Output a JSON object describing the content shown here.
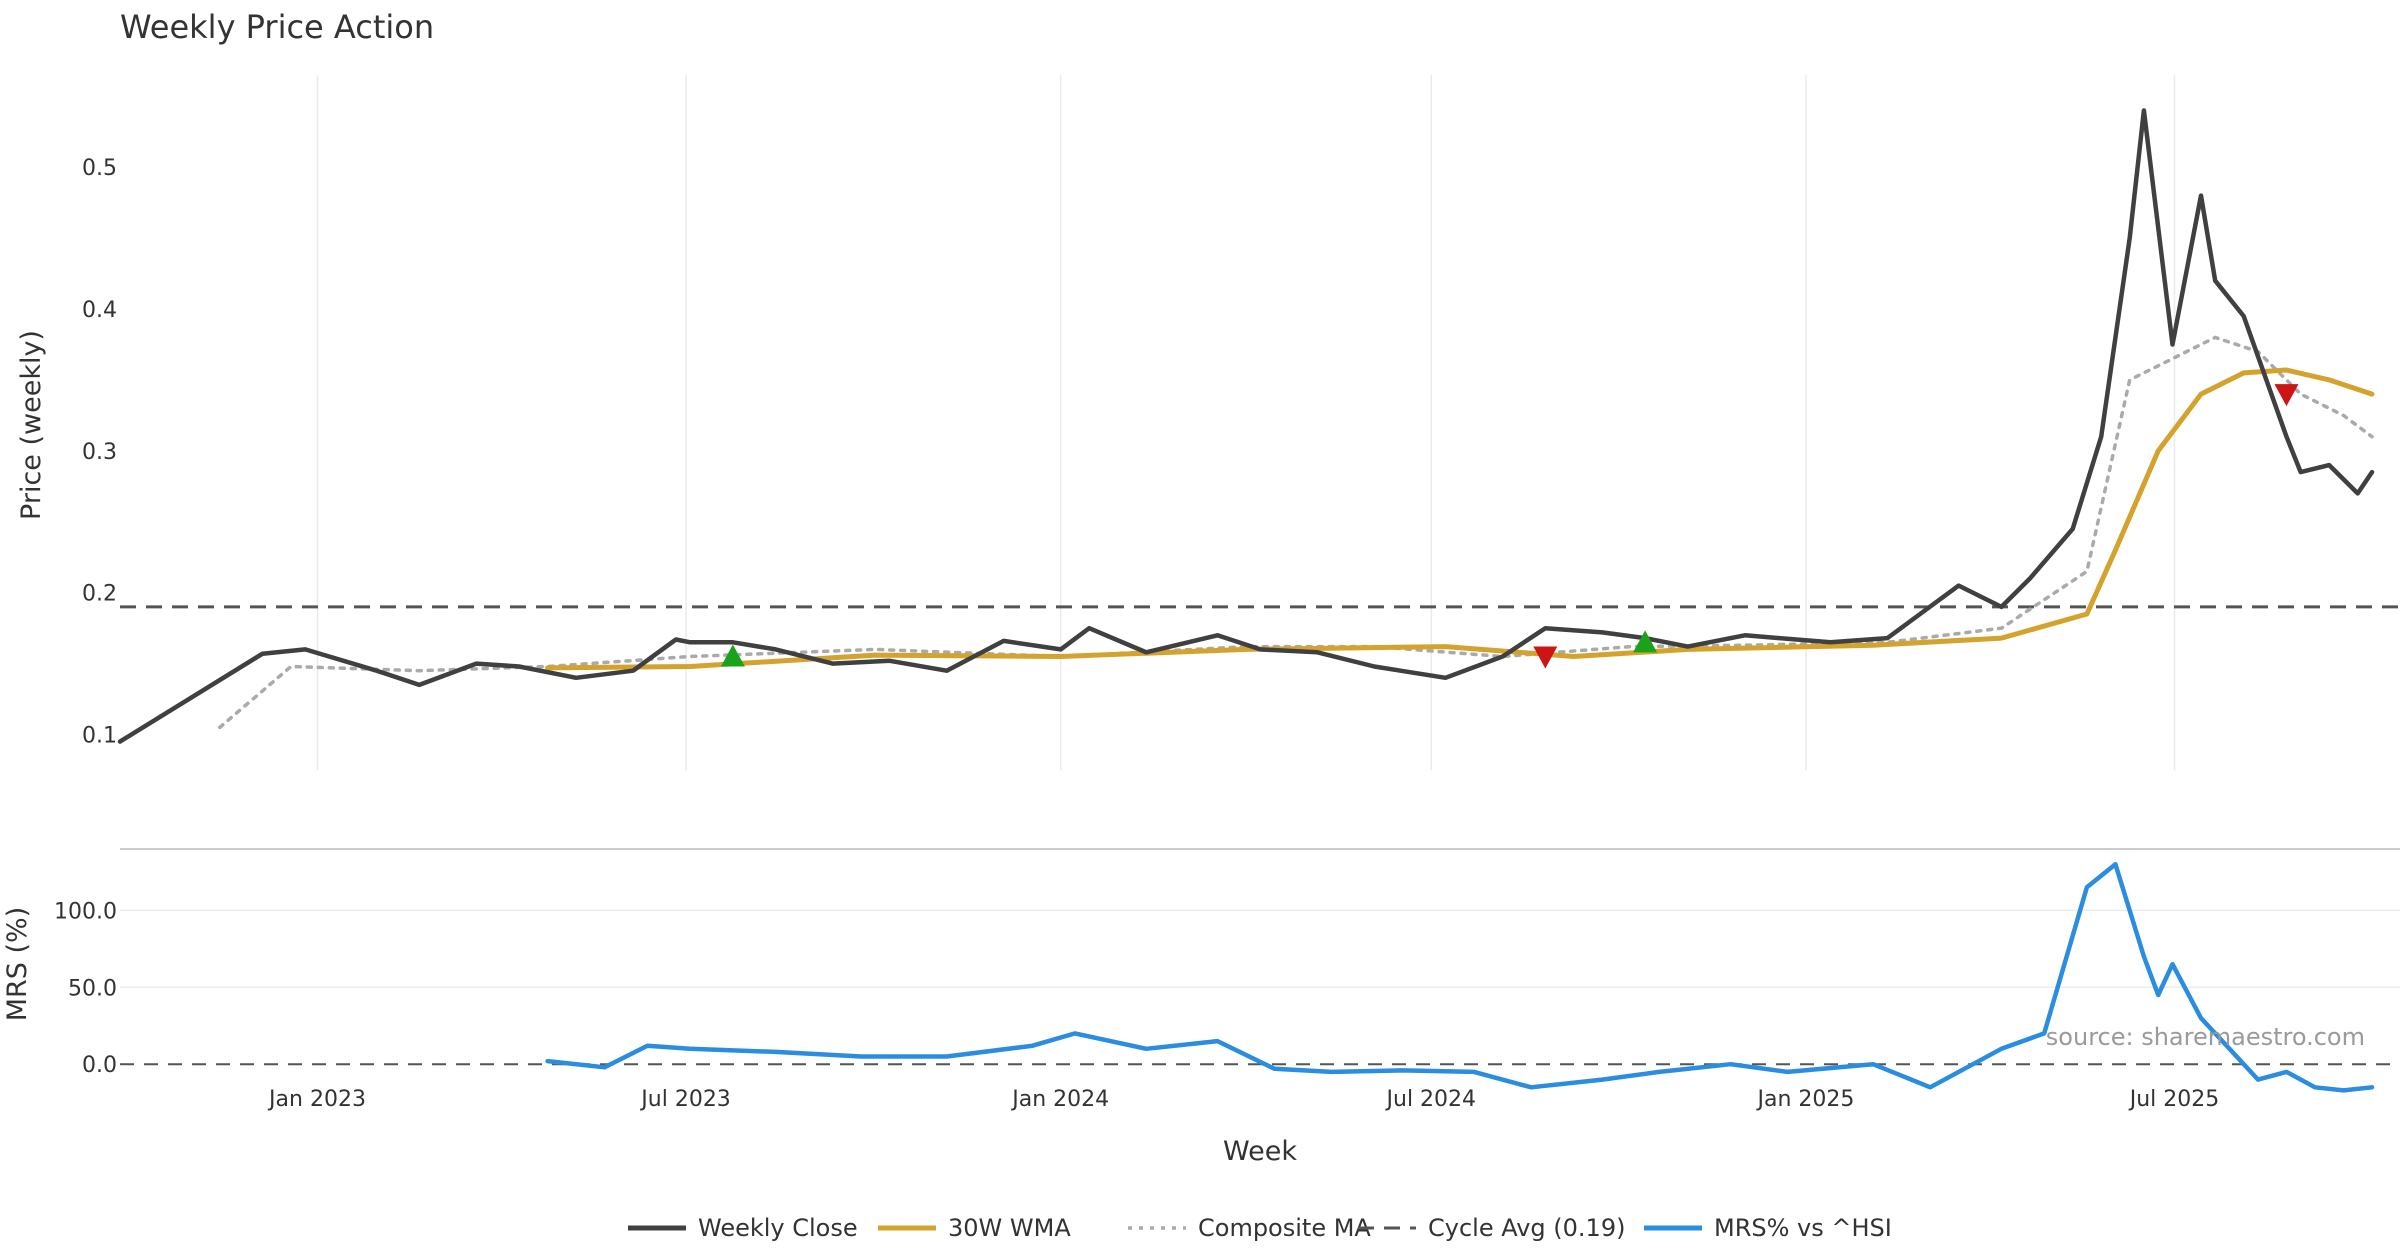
{
  "title": "Weekly Price Action",
  "source": "source: sharemaestro.com",
  "chart_data": [
    {
      "type": "line",
      "panel": "price",
      "ylabel": "Price (weekly)",
      "ylim": [
        0.075,
        0.565
      ],
      "yticks": [
        0.1,
        0.2,
        0.3,
        0.4,
        0.5
      ],
      "ytick_labels": [
        "0.1",
        "0.2",
        "0.3",
        "0.4",
        "0.5"
      ],
      "grid": true,
      "x_start": "2022-09-26",
      "x_end": "2025-10-06",
      "cycle_avg": 0.19,
      "series": [
        {
          "name": "Weekly Close",
          "color": "#404040",
          "style": "solid",
          "dates": [
            "2022-09-26",
            "2022-12-05",
            "2022-12-26",
            "2023-01-30",
            "2023-02-20",
            "2023-03-20",
            "2023-04-10",
            "2023-05-08",
            "2023-06-05",
            "2023-06-26",
            "2023-07-03",
            "2023-07-24",
            "2023-08-14",
            "2023-09-11",
            "2023-10-09",
            "2023-11-06",
            "2023-12-04",
            "2024-01-01",
            "2024-01-15",
            "2024-02-12",
            "2024-03-18",
            "2024-04-08",
            "2024-05-06",
            "2024-06-03",
            "2024-07-08",
            "2024-08-05",
            "2024-08-26",
            "2024-09-23",
            "2024-10-14",
            "2024-11-04",
            "2024-12-02",
            "2025-01-13",
            "2025-02-10",
            "2025-03-17",
            "2025-04-07",
            "2025-04-21",
            "2025-05-12",
            "2025-05-26",
            "2025-06-09",
            "2025-06-16",
            "2025-06-30",
            "2025-07-14",
            "2025-07-21",
            "2025-08-04",
            "2025-08-25",
            "2025-09-01",
            "2025-09-15",
            "2025-09-29",
            "2025-10-06"
          ],
          "values": [
            0.095,
            0.157,
            0.16,
            0.145,
            0.135,
            0.15,
            0.148,
            0.14,
            0.145,
            0.167,
            0.165,
            0.165,
            0.16,
            0.15,
            0.152,
            0.145,
            0.166,
            0.16,
            0.175,
            0.158,
            0.17,
            0.16,
            0.158,
            0.148,
            0.14,
            0.155,
            0.175,
            0.172,
            0.168,
            0.162,
            0.17,
            0.165,
            0.168,
            0.205,
            0.19,
            0.21,
            0.245,
            0.31,
            0.45,
            0.54,
            0.375,
            0.48,
            0.42,
            0.395,
            0.31,
            0.285,
            0.29,
            0.27,
            0.285
          ]
        },
        {
          "name": "30W WMA",
          "color": "#d4a32d",
          "style": "solid",
          "dates": [
            "2023-04-24",
            "2023-07-03",
            "2023-10-02",
            "2024-01-01",
            "2024-04-01",
            "2024-07-08",
            "2024-09-09",
            "2024-11-04",
            "2025-02-03",
            "2025-04-07",
            "2025-05-19",
            "2025-06-02",
            "2025-06-23",
            "2025-07-14",
            "2025-08-04",
            "2025-08-25",
            "2025-09-15",
            "2025-10-06"
          ],
          "values": [
            0.147,
            0.148,
            0.156,
            0.155,
            0.16,
            0.162,
            0.155,
            0.16,
            0.163,
            0.168,
            0.185,
            0.23,
            0.3,
            0.34,
            0.355,
            0.357,
            0.35,
            0.34
          ]
        },
        {
          "name": "Composite MA",
          "color": "#aaaaaa",
          "style": "dotted",
          "dates": [
            "2022-11-14",
            "2022-12-19",
            "2023-02-20",
            "2023-04-24",
            "2023-07-03",
            "2023-10-02",
            "2024-01-01",
            "2024-04-01",
            "2024-06-03",
            "2024-08-05",
            "2024-10-07",
            "2024-12-02",
            "2025-02-10",
            "2025-04-07",
            "2025-05-19",
            "2025-06-09",
            "2025-06-23",
            "2025-07-21",
            "2025-08-11",
            "2025-09-01",
            "2025-09-22",
            "2025-10-06"
          ],
          "values": [
            0.105,
            0.148,
            0.145,
            0.148,
            0.155,
            0.16,
            0.155,
            0.162,
            0.162,
            0.155,
            0.162,
            0.163,
            0.165,
            0.175,
            0.215,
            0.35,
            0.36,
            0.38,
            0.37,
            0.34,
            0.325,
            0.31
          ]
        }
      ],
      "signals": [
        {
          "type": "buy",
          "date": "2023-07-24",
          "value": 0.155
        },
        {
          "type": "sell",
          "date": "2024-08-26",
          "value": 0.155
        },
        {
          "type": "buy",
          "date": "2024-10-14",
          "value": 0.165
        },
        {
          "type": "sell",
          "date": "2025-08-25",
          "value": 0.34
        }
      ]
    },
    {
      "type": "line",
      "panel": "mrs",
      "ylabel": "MRS (%)",
      "ylim": [
        -20,
        134
      ],
      "yticks": [
        0,
        50,
        100
      ],
      "ytick_labels": [
        "0.0",
        "50.0",
        "100.0"
      ],
      "grid": true,
      "x_start": "2022-09-26",
      "x_end": "2025-10-06",
      "zero_line": 0,
      "xlabel": "Week",
      "xtick_labels": [
        "Jan 2023",
        "Jul 2023",
        "Jan 2024",
        "Jul 2024",
        "Jan 2025",
        "Jul 2025"
      ],
      "xtick_dates": [
        "2023-01-01",
        "2023-07-01",
        "2024-01-01",
        "2024-07-01",
        "2025-01-01",
        "2025-07-01"
      ],
      "series": [
        {
          "name": "MRS% vs ^HSI",
          "color": "#2b8de0",
          "style": "solid",
          "dates": [
            "2023-04-24",
            "2023-05-22",
            "2023-06-12",
            "2023-07-03",
            "2023-08-14",
            "2023-09-25",
            "2023-11-06",
            "2023-12-18",
            "2024-01-08",
            "2024-02-12",
            "2024-03-18",
            "2024-04-15",
            "2024-05-13",
            "2024-06-17",
            "2024-07-22",
            "2024-08-19",
            "2024-09-23",
            "2024-10-21",
            "2024-11-25",
            "2024-12-23",
            "2025-02-03",
            "2025-03-03",
            "2025-04-07",
            "2025-04-28",
            "2025-05-19",
            "2025-06-02",
            "2025-06-16",
            "2025-06-23",
            "2025-06-30",
            "2025-07-14",
            "2025-07-28",
            "2025-08-11",
            "2025-08-25",
            "2025-09-08",
            "2025-09-22",
            "2025-10-06"
          ],
          "values": [
            2,
            -2,
            12,
            10,
            8,
            5,
            5,
            12,
            20,
            10,
            15,
            -3,
            -5,
            -4,
            -5,
            -15,
            -10,
            -5,
            0,
            -5,
            0,
            -15,
            10,
            20,
            115,
            130,
            70,
            45,
            65,
            30,
            10,
            -10,
            -5,
            -15,
            -17,
            -15
          ]
        }
      ]
    }
  ],
  "legend": [
    {
      "label": "Weekly Close",
      "style": "solid",
      "color": "#404040"
    },
    {
      "label": "30W WMA",
      "style": "solid",
      "color": "#d4a32d"
    },
    {
      "label": "Composite MA",
      "style": "dotted",
      "color": "#aaaaaa"
    },
    {
      "label": "Cycle Avg (0.19)",
      "style": "dashed",
      "color": "#555555"
    },
    {
      "label": "MRS% vs ^HSI",
      "style": "solid",
      "color": "#2b8de0"
    }
  ]
}
